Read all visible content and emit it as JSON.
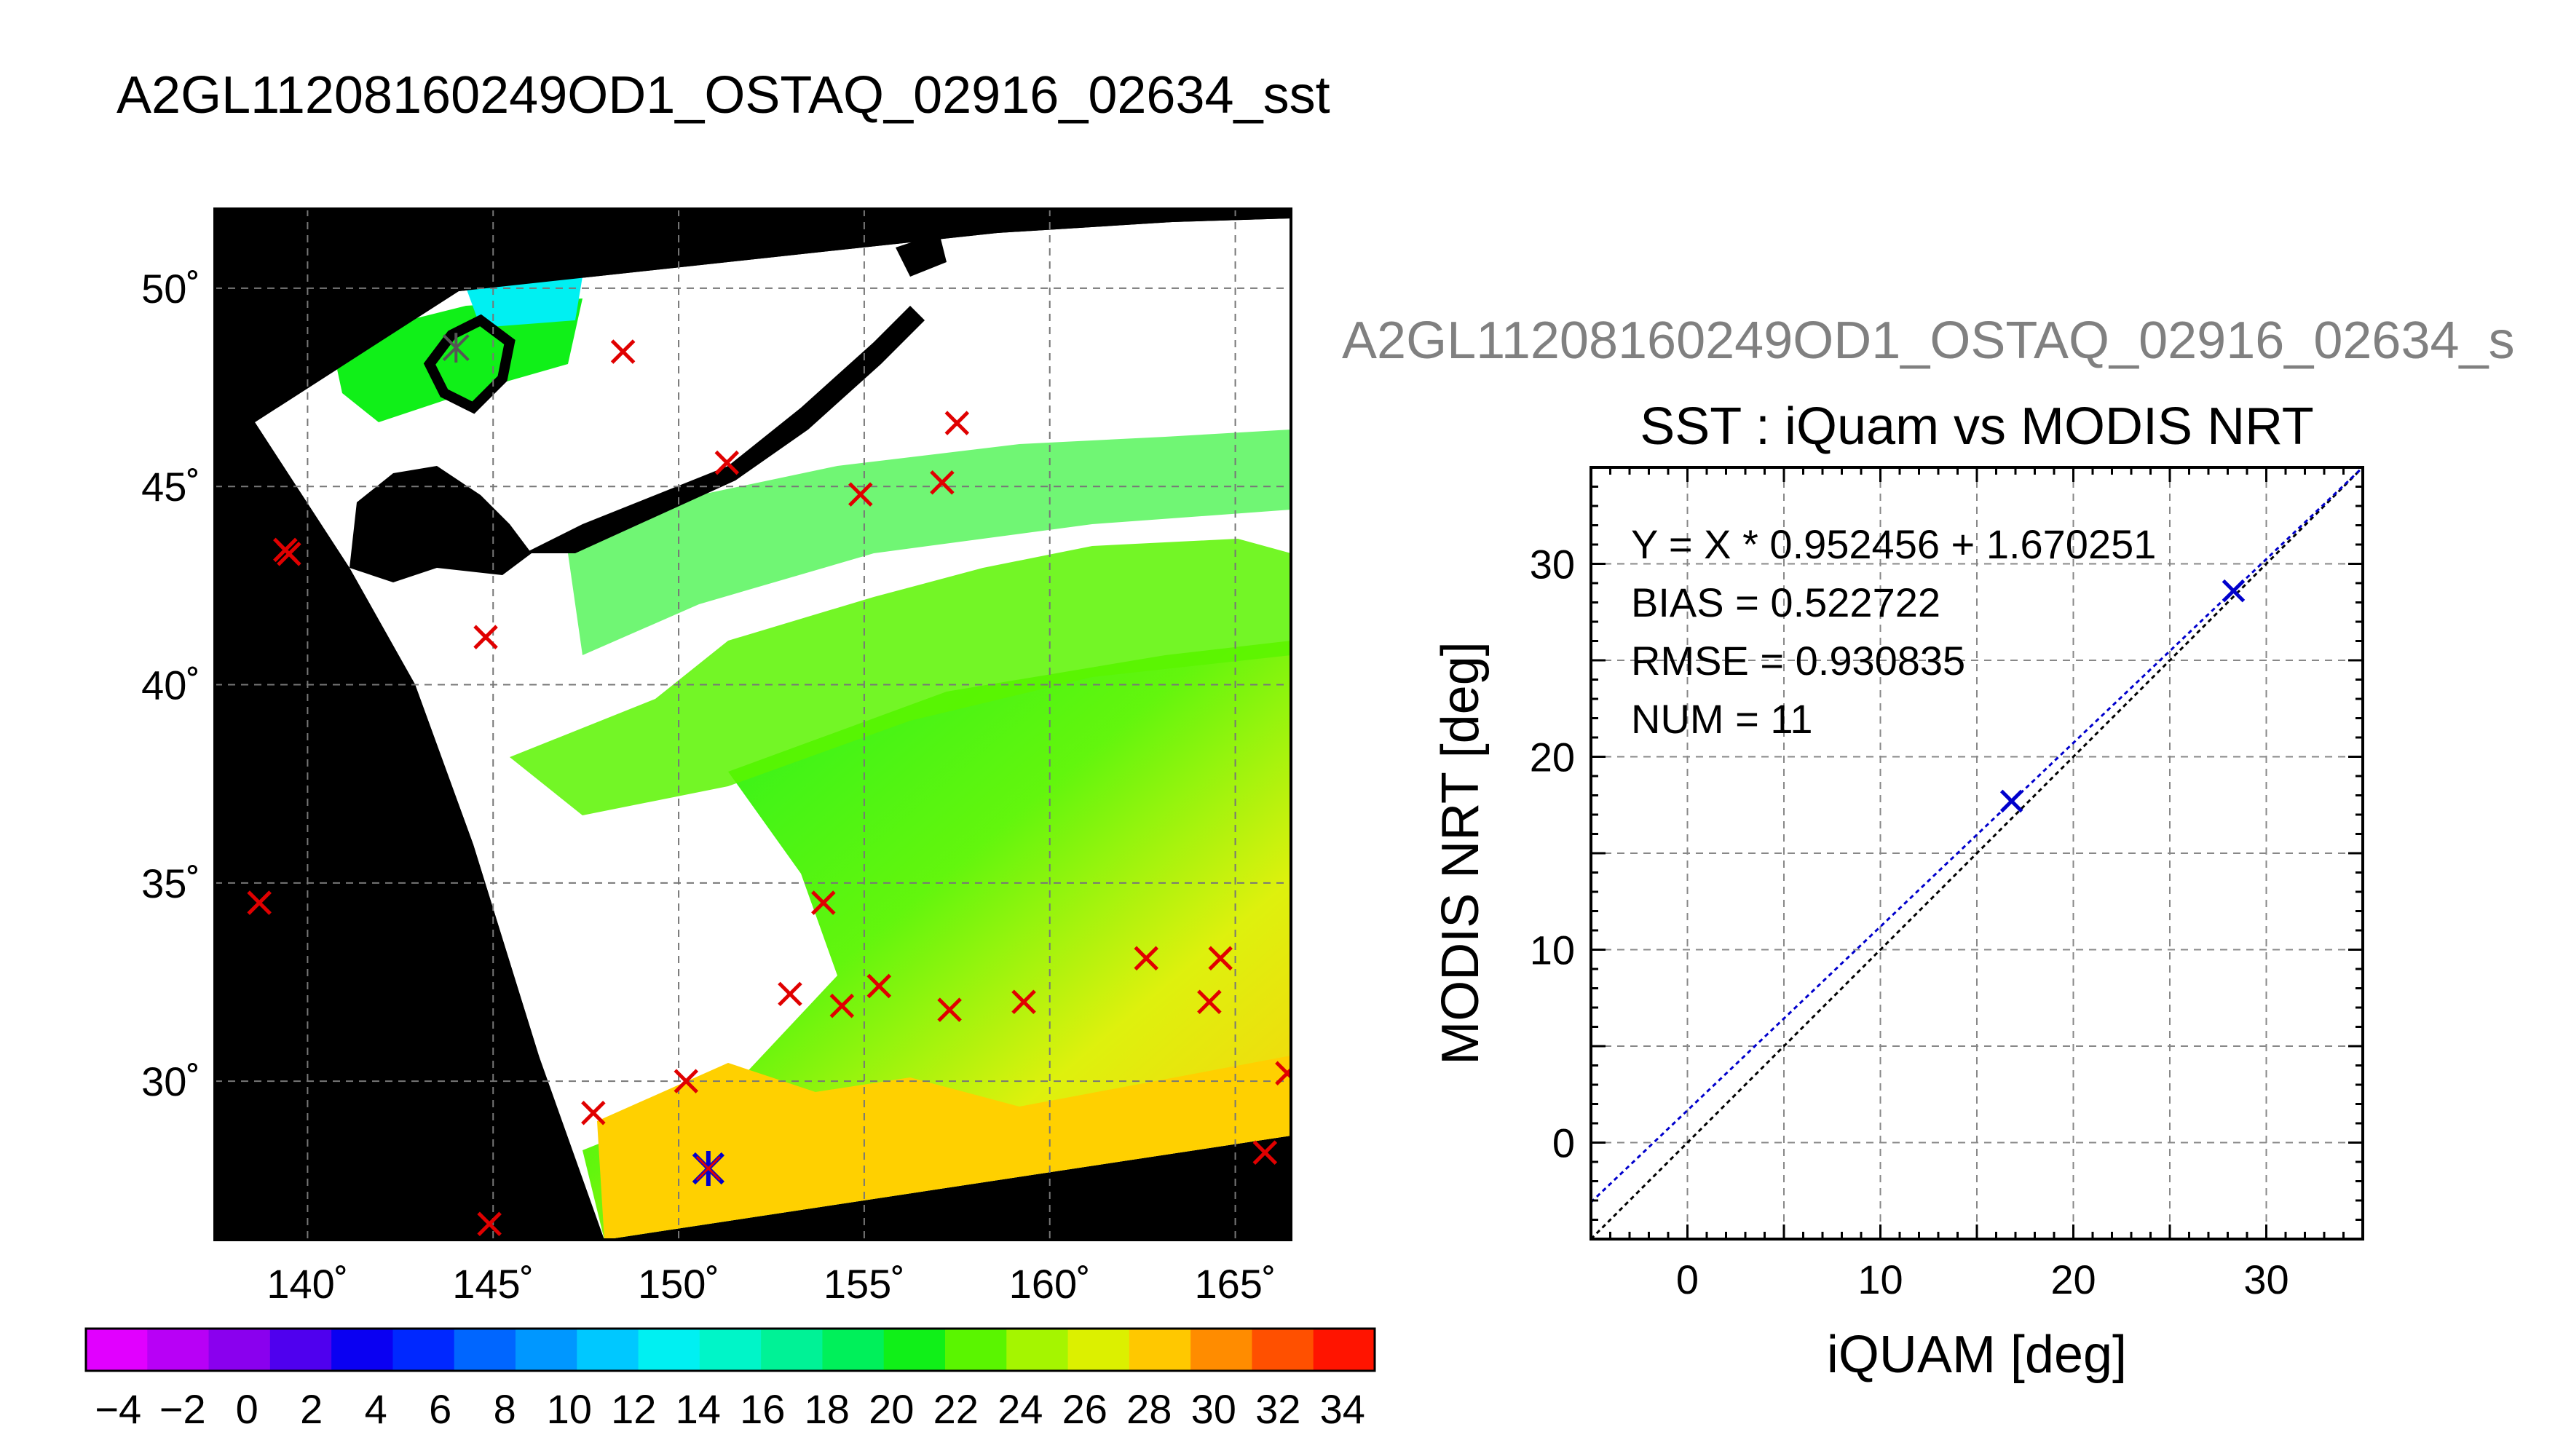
{
  "main_title": "A2GL11208160249OD1_OSTAQ_02916_02634_sst",
  "scatter_file_title": "A2GL11208160249OD1_OSTAQ_02916_02634_s",
  "colors": {
    "match_marker": "#e00000",
    "scatter_marker": "#0000cc",
    "fit_line": "#0000cc",
    "identity_line": "#000000",
    "land": "#000000",
    "cloud": "#ffffff"
  },
  "chart_data": [
    {
      "type": "heatmap",
      "title": "",
      "grid": true,
      "xlim": [
        137.5,
        166.5
      ],
      "ylim": [
        26,
        52
      ],
      "xticks": [
        140,
        145,
        150,
        155,
        160,
        165
      ],
      "yticks": [
        30,
        35,
        40,
        45,
        50
      ],
      "xtick_labels": [
        "140˚",
        "145˚",
        "150˚",
        "155˚",
        "160˚",
        "165˚"
      ],
      "ytick_labels": [
        "30˚",
        "35˚",
        "40˚",
        "45˚",
        "50˚"
      ],
      "color_scale": {
        "min": -5,
        "max": 35,
        "step": 2,
        "labels": [
          "−4",
          "−2",
          "0",
          "2",
          "4",
          "6",
          "8",
          "10",
          "12",
          "14",
          "16",
          "18",
          "20",
          "22",
          "24",
          "26",
          "28",
          "30",
          "32",
          "34"
        ],
        "colors": [
          "#e100ff",
          "#b800f6",
          "#8a00ee",
          "#4f00ee",
          "#0a00f2",
          "#0028ff",
          "#0066ff",
          "#0097ff",
          "#00c8ff",
          "#00f0f2",
          "#00f5c8",
          "#00f296",
          "#00f05a",
          "#10f018",
          "#5af500",
          "#a5f500",
          "#dcf000",
          "#ffc800",
          "#ff8c00",
          "#ff5000",
          "#ff1400"
        ]
      },
      "match_points_red": [
        {
          "lon": 148.5,
          "lat": 48.4
        },
        {
          "lon": 157.5,
          "lat": 46.6
        },
        {
          "lon": 151.3,
          "lat": 45.6
        },
        {
          "lon": 154.9,
          "lat": 44.8
        },
        {
          "lon": 157.1,
          "lat": 45.1
        },
        {
          "lon": 139.4,
          "lat": 43.4
        },
        {
          "lon": 139.5,
          "lat": 43.3
        },
        {
          "lon": 144.8,
          "lat": 41.2
        },
        {
          "lon": 138.7,
          "lat": 34.5
        },
        {
          "lon": 153.9,
          "lat": 34.5
        },
        {
          "lon": 153.0,
          "lat": 32.2
        },
        {
          "lon": 154.4,
          "lat": 31.9
        },
        {
          "lon": 155.4,
          "lat": 32.4
        },
        {
          "lon": 157.3,
          "lat": 31.8
        },
        {
          "lon": 159.3,
          "lat": 32.0
        },
        {
          "lon": 162.6,
          "lat": 33.1
        },
        {
          "lon": 164.6,
          "lat": 33.1
        },
        {
          "lon": 164.3,
          "lat": 32.0
        },
        {
          "lon": 150.2,
          "lat": 30.0
        },
        {
          "lon": 147.7,
          "lat": 29.2
        },
        {
          "lon": 166.4,
          "lat": 30.2
        },
        {
          "lon": 165.8,
          "lat": 28.2
        },
        {
          "lon": 144.9,
          "lat": 26.4
        }
      ],
      "match_points_used": [
        {
          "lon": 144.0,
          "lat": 48.5
        },
        {
          "lon": 150.8,
          "lat": 27.8
        }
      ]
    },
    {
      "type": "scatter",
      "title": "SST : iQuam vs MODIS NRT",
      "xlabel": "iQUAM [deg]",
      "ylabel": "MODIS NRT [deg]",
      "xlim": [
        -5,
        35
      ],
      "ylim": [
        -5,
        35
      ],
      "xticks": [
        0,
        10,
        20,
        30
      ],
      "yticks": [
        0,
        10,
        20,
        30
      ],
      "grid": true,
      "points": [
        {
          "x": 16.8,
          "y": 17.7
        },
        {
          "x": 28.3,
          "y": 28.6
        }
      ],
      "fit": {
        "slope": 0.952456,
        "intercept": 1.670251
      },
      "annotations": [
        "Y = X * 0.952456 + 1.670251",
        "BIAS = 0.522722",
        "RMSE = 0.930835",
        "NUM = 11"
      ]
    }
  ]
}
